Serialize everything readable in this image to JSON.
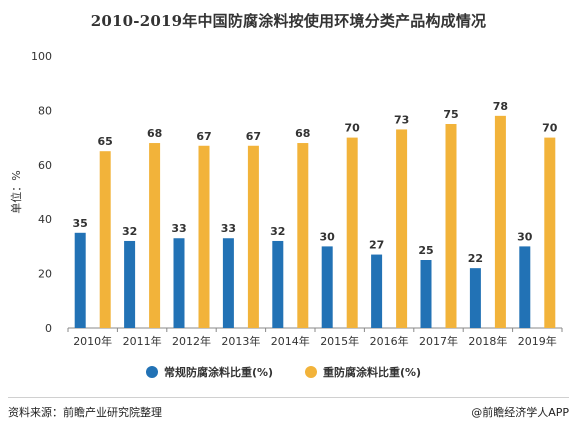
{
  "chart_data": {
    "type": "bar",
    "title": "2010-2019年中国防腐涂料按使用环境分类产品构成情况",
    "ylabel": "单位：%",
    "ylim": [
      0,
      100
    ],
    "yticks": [
      0,
      20,
      40,
      60,
      80,
      100
    ],
    "categories": [
      "2010年",
      "2011年",
      "2012年",
      "2013年",
      "2014年",
      "2015年",
      "2016年",
      "2017年",
      "2018年",
      "2019年"
    ],
    "series": [
      {
        "name": "常规防腐涂料比重(%)",
        "color": "#2272b5",
        "values": [
          35,
          32,
          33,
          33,
          32,
          30,
          27,
          25,
          22,
          30
        ]
      },
      {
        "name": "重防腐涂料比重(%)",
        "color": "#f2b33a",
        "values": [
          65,
          68,
          67,
          67,
          68,
          70,
          73,
          75,
          78,
          70
        ]
      }
    ],
    "legend_position": "bottom",
    "grid": false
  },
  "footer": {
    "source": "资料来源：前瞻产业研究院整理",
    "brand": "@前瞻经济学人APP"
  }
}
